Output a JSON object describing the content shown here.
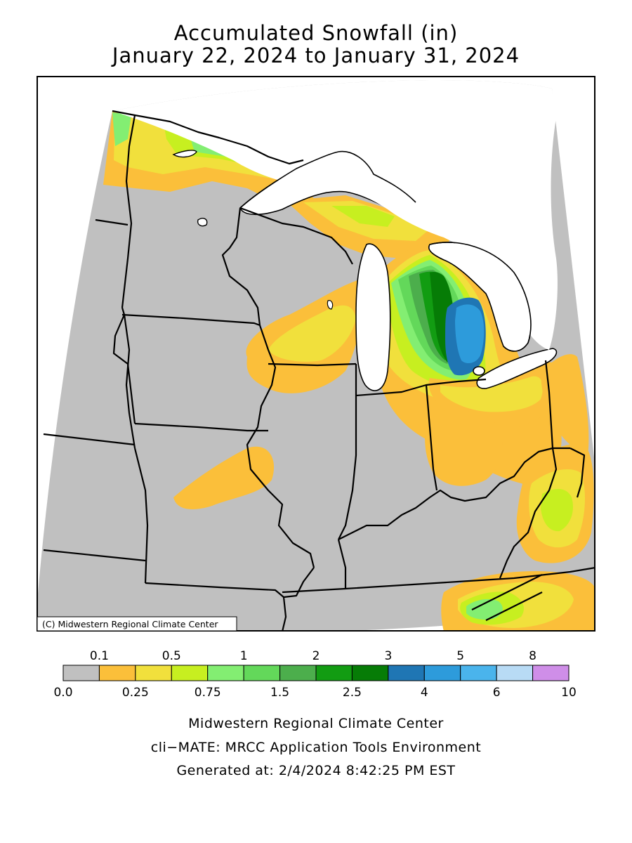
{
  "title": {
    "line1": "Accumulated Snowfall (in)",
    "line2": "January 22, 2024 to January 31, 2024"
  },
  "map": {
    "region": "Midwest United States",
    "copyright": "(C) Midwestern Regional Climate Center",
    "land_color": "#c0c0c0",
    "water_color": "#ffffff",
    "border_color": "#000000"
  },
  "legend": {
    "upper_labels": [
      "0.1",
      "0.5",
      "1",
      "2",
      "3",
      "5",
      "8"
    ],
    "lower_labels": [
      "0.0",
      "0.25",
      "0.75",
      "1.5",
      "2.5",
      "4",
      "6",
      "10"
    ],
    "bins": [
      {
        "min": 0.0,
        "max": 0.1,
        "color": "#c0c0c0"
      },
      {
        "min": 0.1,
        "max": 0.25,
        "color": "#fbbf3a"
      },
      {
        "min": 0.25,
        "max": 0.5,
        "color": "#f1e03c"
      },
      {
        "min": 0.5,
        "max": 0.75,
        "color": "#c7ef20"
      },
      {
        "min": 0.75,
        "max": 1,
        "color": "#83ee72"
      },
      {
        "min": 1,
        "max": 1.5,
        "color": "#63d85a"
      },
      {
        "min": 1.5,
        "max": 2,
        "color": "#4cae4c"
      },
      {
        "min": 2,
        "max": 2.5,
        "color": "#129c12"
      },
      {
        "min": 2.5,
        "max": 3,
        "color": "#067c06"
      },
      {
        "min": 3,
        "max": 4,
        "color": "#1f76b4"
      },
      {
        "min": 4,
        "max": 5,
        "color": "#2d9bdb"
      },
      {
        "min": 5,
        "max": 6,
        "color": "#4ab4ec"
      },
      {
        "min": 6,
        "max": 8,
        "color": "#b8dbf5"
      },
      {
        "min": 8,
        "max": 10,
        "color": "#cf8ee8"
      }
    ]
  },
  "footer": {
    "line1": "Midwestern Regional Climate Center",
    "line2": "cli−MATE: MRCC Application Tools Environment",
    "line3": "Generated at: 2/4/2024 8:42:25 PM EST"
  }
}
